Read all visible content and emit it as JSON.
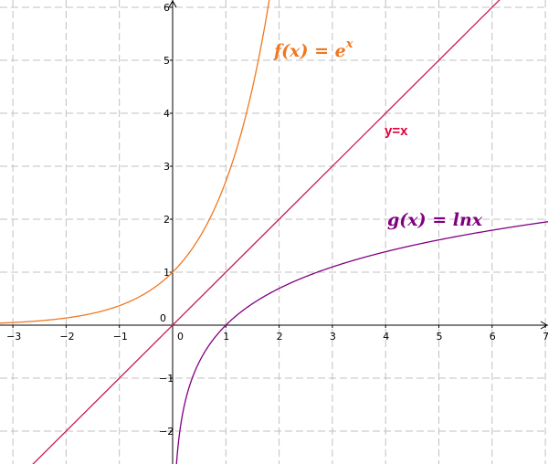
{
  "chart_data": {
    "type": "line",
    "title": "",
    "xlabel": "",
    "ylabel": "",
    "xlim": [
      -3.3,
      7.2
    ],
    "ylim": [
      -2.75,
      6.2
    ],
    "grid": true,
    "x_ticks": [
      -3,
      -2,
      -1,
      0,
      1,
      2,
      3,
      4,
      5,
      6,
      7
    ],
    "y_ticks": [
      -2,
      -1,
      0,
      1,
      2,
      3,
      4,
      5,
      6
    ],
    "series": [
      {
        "label_parts": [
          "f(x) = e",
          "x"
        ],
        "color": "#f07820",
        "x": [
          -3.3,
          -3,
          -2.5,
          -2,
          -1.5,
          -1,
          -0.5,
          0,
          0.5,
          1,
          1.25,
          1.5,
          1.75,
          1.83
        ],
        "y": [
          0.04,
          0.05,
          0.08,
          0.14,
          0.22,
          0.37,
          0.61,
          1.0,
          1.65,
          2.72,
          3.49,
          4.48,
          5.75,
          6.2
        ]
      },
      {
        "label": "y=x",
        "color": "#c81e50",
        "label_color": "#e0003c",
        "x": [
          -2.7,
          6.2
        ],
        "y": [
          -2.7,
          6.2
        ]
      },
      {
        "label": "g(x) = lnx",
        "color": "#800080",
        "x": [
          0.064,
          0.08,
          0.1,
          0.15,
          0.2,
          0.3,
          0.5,
          0.75,
          1,
          1.5,
          2,
          2.5,
          3,
          4,
          5,
          6,
          7,
          7.2
        ],
        "y": [
          -2.75,
          -2.53,
          -2.3,
          -1.9,
          -1.61,
          -1.2,
          -0.69,
          -0.29,
          0,
          0.41,
          0.69,
          0.92,
          1.1,
          1.39,
          1.61,
          1.79,
          1.95,
          1.97
        ]
      }
    ]
  }
}
